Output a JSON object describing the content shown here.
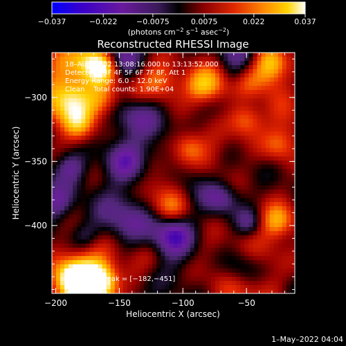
{
  "chart_data": {
    "type": "heatmap",
    "title": "Reconstructed RHESSI Image",
    "xlabel": "Heliocentric X (arcsec)",
    "ylabel": "Heliocentric Y (arcsec)",
    "xlim": [
      -203,
      -12
    ],
    "ylim": [
      -453,
      -265
    ],
    "x_ticks": [
      -200,
      -150,
      -100,
      -50
    ],
    "x_tick_labels": [
      "−200",
      "−150",
      "−100",
      "−50"
    ],
    "y_ticks": [
      -300,
      -350,
      -400
    ],
    "y_tick_labels": [
      "−300",
      "−350",
      "−400"
    ],
    "colorbar": {
      "range": [
        -0.037,
        0.037
      ],
      "ticks": [
        -0.037,
        -0.022,
        -0.0075,
        0.0075,
        0.022,
        0.037
      ],
      "tick_labels": [
        "−0.037",
        "−0.022",
        "−0.0075",
        "0.0075",
        "0.022",
        "0.037"
      ],
      "unit_label": "(photons cm",
      "unit_exp1": "−2",
      "unit_mid": " s",
      "unit_exp2": "−1",
      "unit_mid2": " asec",
      "unit_exp3": "−2",
      "unit_end": ")",
      "colors": [
        "#0000ff",
        "#3c00b4",
        "#6e1ea0",
        "#502878",
        "#000000",
        "#960000",
        "#e62800",
        "#ff8c00",
        "#ffd200",
        "#ffffff"
      ]
    },
    "annotations": [
      "18–Aug–2002 13:08:16.000 to 13:13:52.000",
      "Detectors: 3F 4F 5F 6F 7F 8F, Att 1",
      "Energy Range: 6.0 – 12.0 keV",
      "Clean    Total counts: 1.90E+04"
    ],
    "peak_label": "Position of Peak = [−182,−451]",
    "peak_position": [
      -182,
      -451
    ],
    "grid": false
  },
  "footer_date": "1–May–2022 04:04"
}
